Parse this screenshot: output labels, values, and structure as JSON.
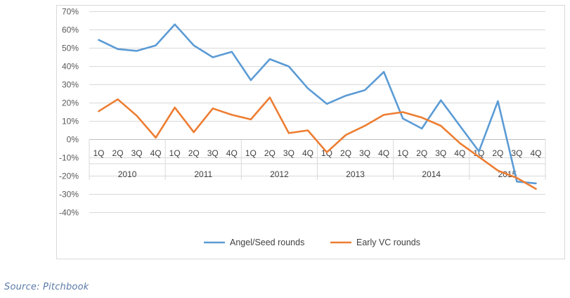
{
  "chart_data": {
    "type": "line",
    "categories": [
      "1Q",
      "2Q",
      "3Q",
      "4Q",
      "1Q",
      "2Q",
      "3Q",
      "4Q",
      "1Q",
      "2Q",
      "3Q",
      "4Q",
      "1Q",
      "2Q",
      "3Q",
      "4Q",
      "1Q",
      "2Q",
      "3Q",
      "4Q",
      "1Q",
      "2Q",
      "3Q",
      "4Q"
    ],
    "year_groups": [
      "2010",
      "2011",
      "2012",
      "2013",
      "2014",
      "2015"
    ],
    "y_ticks": [
      "70%",
      "60%",
      "50%",
      "40%",
      "30%",
      "20%",
      "10%",
      "0%",
      "-10%",
      "-20%",
      "-30%",
      "-40%"
    ],
    "ylim": [
      -40,
      70
    ],
    "y_unit": "percent",
    "grid": true,
    "legend_position": "bottom",
    "series": [
      {
        "name": "Angel/Seed rounds",
        "color": "#5b9bd5",
        "values": [
          54.5,
          49.5,
          48.5,
          51.5,
          63,
          51.5,
          45,
          48,
          32.5,
          44,
          40,
          28,
          19.5,
          24,
          27,
          37,
          11.5,
          6,
          21.5,
          7.5,
          -6.5,
          21,
          -23,
          -24
        ]
      },
      {
        "name": "Early VC rounds",
        "color": "#ed7d31",
        "values": [
          15.5,
          22,
          13,
          1,
          17.5,
          4,
          17,
          13.5,
          11,
          23,
          3.5,
          5,
          -7,
          2.5,
          7.5,
          13.5,
          15,
          12,
          7.5,
          -2,
          -9.5,
          -17,
          -21,
          -27
        ]
      }
    ]
  },
  "source": "Source: Pitchbook"
}
